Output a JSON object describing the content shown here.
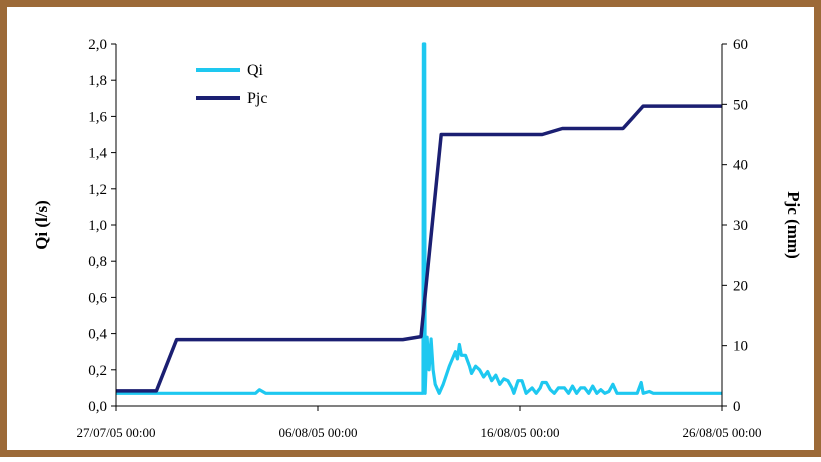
{
  "chart_data": {
    "type": "line",
    "title": "",
    "frame_color": "#9c6a38",
    "x_ticks": [
      "27/07/05 00:00",
      "06/08/05 00:00",
      "16/08/05 00:00",
      "26/08/05 00:00"
    ],
    "xlim_days": [
      0,
      30
    ],
    "left_axis": {
      "label": "Qi (l/s)",
      "ylim": [
        0,
        2.0
      ],
      "ticks": [
        "0,0",
        "0,2",
        "0,4",
        "0,6",
        "0,8",
        "1,0",
        "1,2",
        "1,4",
        "1,6",
        "1,8",
        "2,0"
      ]
    },
    "right_axis": {
      "label": "Pjc (mm)",
      "ylim": [
        0,
        60
      ],
      "ticks": [
        "0",
        "10",
        "20",
        "30",
        "40",
        "50",
        "60"
      ]
    },
    "legend": {
      "position": "top-left"
    },
    "series": [
      {
        "name": "Qi",
        "axis": "left",
        "color": "#1ec8f0",
        "points": [
          [
            0,
            0.07
          ],
          [
            6.9,
            0.07
          ],
          [
            7.1,
            0.09
          ],
          [
            7.4,
            0.07
          ],
          [
            15.0,
            0.07
          ],
          [
            15.2,
            0.07
          ],
          [
            15.22,
            2.0
          ],
          [
            15.28,
            2.0
          ],
          [
            15.3,
            0.07
          ],
          [
            15.4,
            0.38
          ],
          [
            15.5,
            0.2
          ],
          [
            15.6,
            0.37
          ],
          [
            15.7,
            0.2
          ],
          [
            15.8,
            0.12
          ],
          [
            16.0,
            0.07
          ],
          [
            16.2,
            0.12
          ],
          [
            16.5,
            0.22
          ],
          [
            16.8,
            0.3
          ],
          [
            16.9,
            0.26
          ],
          [
            17.0,
            0.34
          ],
          [
            17.1,
            0.28
          ],
          [
            17.3,
            0.28
          ],
          [
            17.5,
            0.22
          ],
          [
            17.6,
            0.18
          ],
          [
            17.8,
            0.22
          ],
          [
            18.0,
            0.2
          ],
          [
            18.2,
            0.16
          ],
          [
            18.4,
            0.19
          ],
          [
            18.6,
            0.14
          ],
          [
            18.8,
            0.17
          ],
          [
            19.0,
            0.12
          ],
          [
            19.2,
            0.15
          ],
          [
            19.4,
            0.14
          ],
          [
            19.6,
            0.1
          ],
          [
            19.7,
            0.07
          ],
          [
            19.9,
            0.14
          ],
          [
            20.1,
            0.14
          ],
          [
            20.3,
            0.07
          ],
          [
            20.6,
            0.1
          ],
          [
            20.8,
            0.07
          ],
          [
            21.0,
            0.1
          ],
          [
            21.1,
            0.13
          ],
          [
            21.3,
            0.13
          ],
          [
            21.5,
            0.09
          ],
          [
            21.7,
            0.07
          ],
          [
            21.9,
            0.1
          ],
          [
            22.2,
            0.1
          ],
          [
            22.4,
            0.07
          ],
          [
            22.6,
            0.11
          ],
          [
            22.8,
            0.07
          ],
          [
            23.0,
            0.1
          ],
          [
            23.2,
            0.1
          ],
          [
            23.4,
            0.07
          ],
          [
            23.6,
            0.11
          ],
          [
            23.8,
            0.07
          ],
          [
            24.0,
            0.09
          ],
          [
            24.2,
            0.07
          ],
          [
            24.4,
            0.08
          ],
          [
            24.6,
            0.12
          ],
          [
            24.8,
            0.07
          ],
          [
            25.8,
            0.07
          ],
          [
            26.0,
            0.13
          ],
          [
            26.1,
            0.07
          ],
          [
            26.4,
            0.08
          ],
          [
            26.6,
            0.07
          ],
          [
            30.0,
            0.07
          ]
        ]
      },
      {
        "name": "Pjc",
        "axis": "right",
        "color": "#1b1f72",
        "points": [
          [
            0,
            2.5
          ],
          [
            2.0,
            2.5
          ],
          [
            3.0,
            11
          ],
          [
            14.2,
            11
          ],
          [
            15.1,
            11.5
          ],
          [
            16.1,
            45
          ],
          [
            21.1,
            45
          ],
          [
            22.1,
            46
          ],
          [
            25.1,
            46
          ],
          [
            26.1,
            49.7
          ],
          [
            30.0,
            49.7
          ]
        ]
      }
    ]
  }
}
